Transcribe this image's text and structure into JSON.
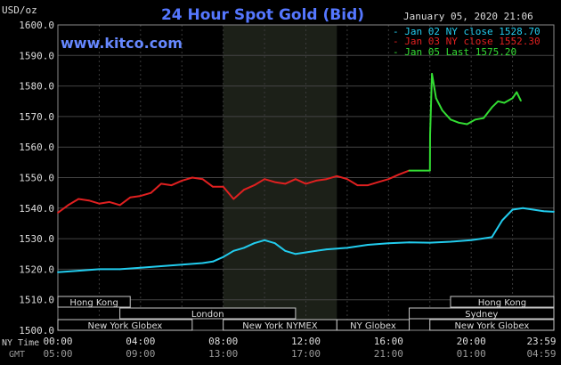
{
  "title": "24 Hour Spot Gold (Bid)",
  "watermark": "www.kitco.com",
  "timestamp": "January 05, 2020 21:06",
  "y_unit": "USD/oz",
  "legend": [
    {
      "label": "Jan 02 NY close 1528.70",
      "color": "#22ccee"
    },
    {
      "label": "Jan 03 NY close 1552.30",
      "color": "#e02020"
    },
    {
      "label": "Jan 05 Last 1575.20",
      "color": "#33dd33"
    }
  ],
  "time_axis": {
    "ny_label": "NY Time",
    "gmt_label": "GMT",
    "ny_ticks": [
      "00:00",
      "04:00",
      "08:00",
      "12:00",
      "16:00",
      "20:00",
      "23:59"
    ],
    "gmt_ticks": [
      "05:00",
      "09:00",
      "13:00",
      "17:00",
      "21:00",
      "01:00",
      "04:59"
    ]
  },
  "sessions": {
    "row1": [
      {
        "label": "Hong Kong",
        "start": 0,
        "end": 3.5
      },
      {
        "label": "Hong Kong",
        "start": 19.0,
        "end": 24
      }
    ],
    "row2": [
      {
        "label": "London",
        "start": 3.0,
        "end": 11.5
      },
      {
        "label": "Sydney",
        "start": 17.0,
        "end": 24
      }
    ],
    "row3": [
      {
        "label": "New York Globex",
        "start": 0,
        "end": 6.5
      },
      {
        "label": "New York NYMEX",
        "start": 8.0,
        "end": 13.5
      },
      {
        "label": "NY Globex",
        "start": 13.5,
        "end": 17.0
      },
      {
        "label": "New York Globex",
        "start": 18.0,
        "end": 24
      }
    ]
  },
  "chart_data": {
    "type": "line",
    "title": "24 Hour Spot Gold (Bid)",
    "ylabel": "USD/oz",
    "ylim": [
      1500,
      1600
    ],
    "yticks": [
      "1600.0",
      "1590.0",
      "1580.0",
      "1570.0",
      "1560.0",
      "1550.0",
      "1540.0",
      "1530.0",
      "1520.0",
      "1510.0",
      "1500.0"
    ],
    "xlim": [
      0,
      24
    ],
    "shaded_hours": [
      8.0,
      13.5
    ],
    "series": [
      {
        "name": "Jan 02 NY close 1528.70",
        "color": "#22ccee",
        "x": [
          0,
          1,
          2,
          3,
          4,
          5,
          6,
          7,
          7.5,
          8,
          8.5,
          9,
          9.5,
          10,
          10.5,
          11,
          11.5,
          12,
          12.5,
          13,
          14,
          15,
          16,
          17,
          18,
          19,
          20,
          20.5,
          21,
          21.5,
          22,
          22.5,
          23,
          23.5,
          24
        ],
        "y": [
          1519,
          1519.5,
          1520,
          1520,
          1520.5,
          1521,
          1521.5,
          1522,
          1522.5,
          1524,
          1526,
          1527,
          1528.5,
          1529.5,
          1528.5,
          1526,
          1525,
          1525.5,
          1526,
          1526.5,
          1527,
          1528,
          1528.5,
          1528.8,
          1528.7,
          1529,
          1529.5,
          1530,
          1530.5,
          1536,
          1539.5,
          1540,
          1539.5,
          1539,
          1538.8
        ]
      },
      {
        "name": "Jan 03 NY close 1552.30",
        "color": "#e02020",
        "x": [
          0,
          0.5,
          1,
          1.5,
          2,
          2.5,
          3,
          3.5,
          4,
          4.5,
          5,
          5.5,
          6,
          6.5,
          7,
          7.5,
          8,
          8.5,
          9,
          9.5,
          10,
          10.5,
          11,
          11.5,
          12,
          12.5,
          13,
          13.5,
          14,
          14.5,
          15,
          15.5,
          16,
          16.5,
          17
        ],
        "y": [
          1538.5,
          1541,
          1543,
          1542.5,
          1541.5,
          1542,
          1541,
          1543.5,
          1544,
          1545,
          1548,
          1547.5,
          1549,
          1550,
          1549.5,
          1547,
          1547,
          1543,
          1546,
          1547.5,
          1549.5,
          1548.5,
          1548,
          1549.5,
          1548,
          1549,
          1549.5,
          1550.5,
          1549.5,
          1547.5,
          1547.5,
          1548.5,
          1549.5,
          1551,
          1552.3
        ]
      },
      {
        "name": "Jan 05 Last 1575.20",
        "color": "#33dd33",
        "x": [
          17,
          18,
          18.01,
          18.1,
          18.3,
          18.6,
          19,
          19.4,
          19.8,
          20.2,
          20.6,
          21,
          21.3,
          21.6,
          22,
          22.2,
          22.4
        ],
        "y": [
          1552.3,
          1552.3,
          1564,
          1584,
          1576,
          1572,
          1569,
          1568,
          1567.5,
          1569,
          1569.5,
          1573,
          1575,
          1574.5,
          1576,
          1578,
          1575.2
        ]
      }
    ]
  }
}
